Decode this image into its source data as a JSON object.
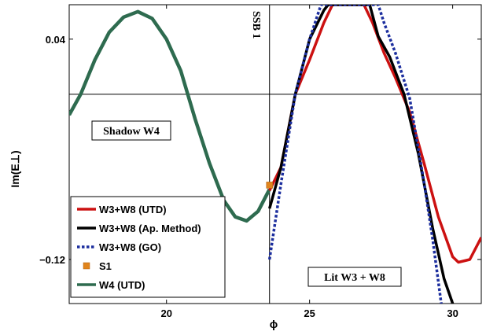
{
  "chart_data": {
    "type": "line",
    "title": "",
    "xlabel": "ϕ",
    "ylabel": "Im(E⊥)",
    "xlim": [
      16.6,
      31.0
    ],
    "ylim": [
      -0.152,
      0.065
    ],
    "x_ticks": [
      20,
      25,
      30
    ],
    "y_ticks": [
      0.04,
      -0.12
    ],
    "y_tick_labels": [
      "0.04",
      "−0.12"
    ],
    "grid": false,
    "legend_position": "bottom-left",
    "reference_lines": {
      "vertical_x": 23.6,
      "horizontal_y": 0.0
    },
    "annotations": {
      "ssb": "SSB 1",
      "shadow": "Shadow  W4",
      "lit": "Lit   W3 + W8"
    },
    "series": [
      {
        "name": "W3+W8 (UTD)",
        "color": "#cc1111",
        "style": "solid",
        "points": [
          [
            23.6,
            -0.07
          ],
          [
            24.0,
            -0.053
          ],
          [
            24.5,
            0.0
          ],
          [
            25.0,
            0.025
          ],
          [
            25.5,
            0.052
          ],
          [
            25.8,
            0.065
          ],
          [
            26.9,
            0.065
          ],
          [
            27.2,
            0.052
          ],
          [
            27.6,
            0.03
          ],
          [
            28.0,
            0.012
          ],
          [
            28.5,
            -0.013
          ],
          [
            29.0,
            -0.05
          ],
          [
            29.5,
            -0.089
          ],
          [
            30.0,
            -0.118
          ],
          [
            30.2,
            -0.122
          ],
          [
            30.6,
            -0.12
          ],
          [
            31.0,
            -0.104
          ]
        ]
      },
      {
        "name": "W3+W8 (Ap. Method)",
        "color": "#000000",
        "style": "solid",
        "points": [
          [
            23.6,
            -0.083
          ],
          [
            24.0,
            -0.053
          ],
          [
            24.5,
            0.0
          ],
          [
            25.0,
            0.04
          ],
          [
            25.5,
            0.061
          ],
          [
            25.65,
            0.065
          ],
          [
            27.1,
            0.065
          ],
          [
            27.4,
            0.042
          ],
          [
            27.8,
            0.027
          ],
          [
            28.3,
            0.0
          ],
          [
            28.8,
            -0.043
          ],
          [
            29.3,
            -0.097
          ],
          [
            29.7,
            -0.134
          ],
          [
            29.9,
            -0.146
          ],
          [
            30.0,
            -0.152
          ]
        ]
      },
      {
        "name": "W3+W8 (GO)",
        "color": "#1c2e9e",
        "style": "dotted",
        "points": [
          [
            23.6,
            -0.12
          ],
          [
            24.0,
            -0.065
          ],
          [
            24.5,
            0.0
          ],
          [
            25.0,
            0.04
          ],
          [
            25.4,
            0.065
          ],
          [
            27.4,
            0.065
          ],
          [
            27.6,
            0.052
          ],
          [
            28.0,
            0.03
          ],
          [
            28.5,
            -0.003
          ],
          [
            29.0,
            -0.064
          ],
          [
            29.3,
            -0.105
          ],
          [
            29.6,
            -0.152
          ]
        ]
      },
      {
        "name": "S1",
        "color": "#e0841c",
        "style": "marker",
        "points": [
          [
            23.6,
            -0.066
          ]
        ]
      },
      {
        "name": "W4 (UTD)",
        "color": "#2e6b4f",
        "style": "solid",
        "points": [
          [
            16.6,
            -0.015
          ],
          [
            17.0,
            0.0
          ],
          [
            17.5,
            0.025
          ],
          [
            18.0,
            0.045
          ],
          [
            18.5,
            0.056
          ],
          [
            19.0,
            0.06
          ],
          [
            19.5,
            0.055
          ],
          [
            20.0,
            0.04
          ],
          [
            20.5,
            0.017
          ],
          [
            21.0,
            -0.018
          ],
          [
            21.5,
            -0.05
          ],
          [
            22.0,
            -0.077
          ],
          [
            22.4,
            -0.089
          ],
          [
            22.8,
            -0.092
          ],
          [
            23.2,
            -0.085
          ],
          [
            23.6,
            -0.069
          ]
        ]
      }
    ]
  }
}
